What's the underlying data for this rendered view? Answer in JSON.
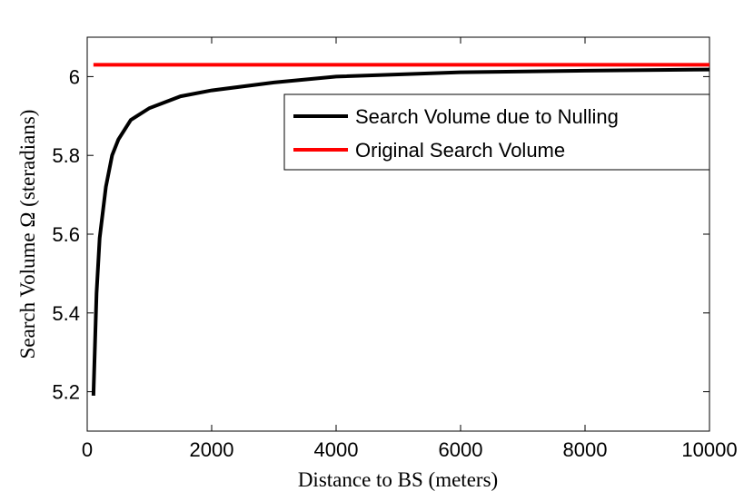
{
  "chart_data": {
    "type": "line",
    "xlabel": "Distance to BS (meters)",
    "ylabel": "Search Volume Ω (steradians)",
    "x": [
      100,
      150,
      200,
      300,
      400,
      500,
      700,
      1000,
      1500,
      2000,
      3000,
      4000,
      6000,
      8000,
      10000
    ],
    "series": [
      {
        "name": "Search Volume due to Nulling",
        "color": "#000000",
        "values": [
          5.19,
          5.45,
          5.59,
          5.72,
          5.8,
          5.84,
          5.89,
          5.92,
          5.95,
          5.965,
          5.985,
          6.0,
          6.011,
          6.015,
          6.018
        ]
      },
      {
        "name": "Original Search Volume",
        "color": "#ff0000",
        "values": [
          6.03,
          6.03,
          6.03,
          6.03,
          6.03,
          6.03,
          6.03,
          6.03,
          6.03,
          6.03,
          6.03,
          6.03,
          6.03,
          6.03,
          6.03
        ]
      }
    ],
    "xlim": [
      0,
      10000
    ],
    "xticks": [
      0,
      2000,
      4000,
      6000,
      8000,
      10000
    ],
    "ylim": [
      5.1,
      6.1
    ],
    "yticks": [
      5.2,
      5.4,
      5.6,
      5.8,
      6
    ],
    "legend": "upper right"
  }
}
